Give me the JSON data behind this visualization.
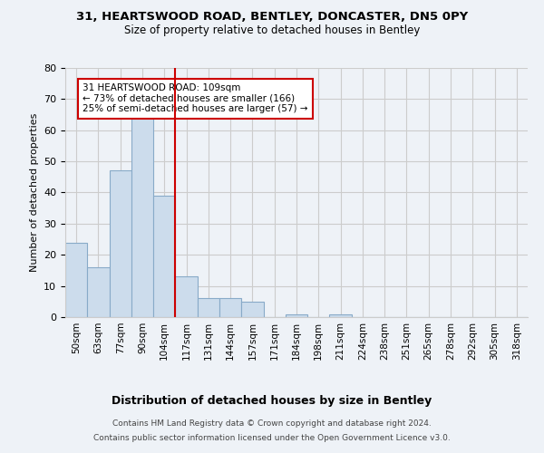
{
  "title_line1": "31, HEARTSWOOD ROAD, BENTLEY, DONCASTER, DN5 0PY",
  "title_line2": "Size of property relative to detached houses in Bentley",
  "xlabel": "Distribution of detached houses by size in Bentley",
  "ylabel": "Number of detached properties",
  "bar_labels": [
    "50sqm",
    "63sqm",
    "77sqm",
    "90sqm",
    "104sqm",
    "117sqm",
    "131sqm",
    "144sqm",
    "157sqm",
    "171sqm",
    "184sqm",
    "198sqm",
    "211sqm",
    "224sqm",
    "238sqm",
    "251sqm",
    "265sqm",
    "278sqm",
    "292sqm",
    "305sqm",
    "318sqm"
  ],
  "bar_values": [
    24,
    16,
    47,
    66,
    39,
    13,
    6,
    6,
    5,
    0,
    1,
    0,
    1,
    0,
    0,
    0,
    0,
    0,
    0,
    0,
    0
  ],
  "bar_color": "#ccdcec",
  "bar_edge_color": "#88aac8",
  "property_line_x": 4.5,
  "annotation_text": "31 HEARTSWOOD ROAD: 109sqm\n← 73% of detached houses are smaller (166)\n25% of semi-detached houses are larger (57) →",
  "annotation_box_color": "#ffffff",
  "annotation_box_edge_color": "#cc0000",
  "red_line_color": "#cc0000",
  "ylim": [
    0,
    80
  ],
  "yticks": [
    0,
    10,
    20,
    30,
    40,
    50,
    60,
    70,
    80
  ],
  "grid_color": "#cccccc",
  "footer_line1": "Contains HM Land Registry data © Crown copyright and database right 2024.",
  "footer_line2": "Contains public sector information licensed under the Open Government Licence v3.0.",
  "background_color": "#eef2f7"
}
